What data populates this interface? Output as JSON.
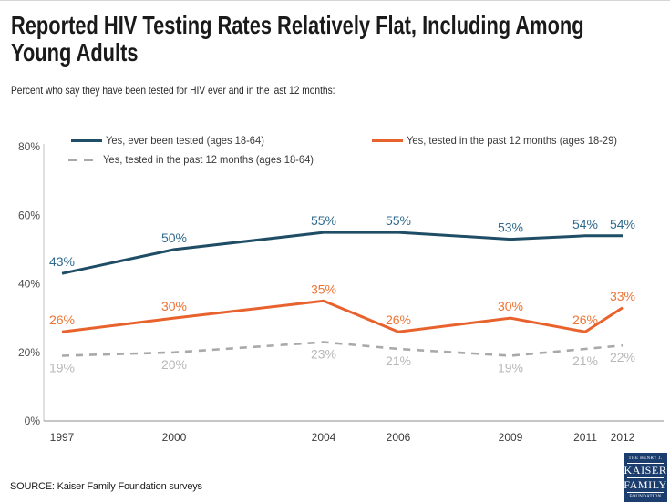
{
  "header": {
    "title_lines": [
      "Reported HIV Testing Rates Relatively Flat, Including Among",
      "Young Adults"
    ],
    "subtitle": "Percent who say they have been tested for HIV ever and in the last 12 months:"
  },
  "chart_data": {
    "type": "line",
    "title": "Reported HIV Testing Rates Relatively Flat, Including Among Young Adults",
    "xlabel": "",
    "ylabel": "",
    "x": [
      1997,
      2000,
      2004,
      2006,
      2009,
      2011,
      2012
    ],
    "x_tick_labels": [
      "1997",
      "2000",
      "2004",
      "2006",
      "2009",
      "2011",
      "2012"
    ],
    "ylim": [
      0,
      80
    ],
    "yticks": [
      0,
      20,
      40,
      60,
      80
    ],
    "ytick_suffix": "%",
    "grid": false,
    "legend_position": "top",
    "series": [
      {
        "name": "Yes, ever been tested (ages 18-64)",
        "values": [
          43,
          50,
          55,
          55,
          53,
          54,
          54
        ],
        "color": "#1F4D66",
        "label_color": "#2F6A8F",
        "line_style": "solid",
        "label_position": "above"
      },
      {
        "name": "Yes, tested in the past 12 months (ages 18-29)",
        "values": [
          26,
          30,
          35,
          26,
          30,
          26,
          33
        ],
        "color": "#E8622E",
        "label_color": "#ED7434",
        "line_style": "solid",
        "label_position": "above"
      },
      {
        "name": "Yes, tested in the past 12 months (ages 18-64)",
        "values": [
          19,
          20,
          23,
          21,
          19,
          21,
          22
        ],
        "color": "#A9A9A9",
        "label_color": "#B8B8B8",
        "line_style": "dashed",
        "label_position": "below"
      }
    ]
  },
  "footer": {
    "source": "SOURCE: Kaiser Family Foundation surveys",
    "logo": {
      "line1": "THE HENRY J.",
      "line2": "KAISER",
      "line3": "FAMILY",
      "line4": "FOUNDATION",
      "bg_color": "#1C3E6E"
    }
  }
}
